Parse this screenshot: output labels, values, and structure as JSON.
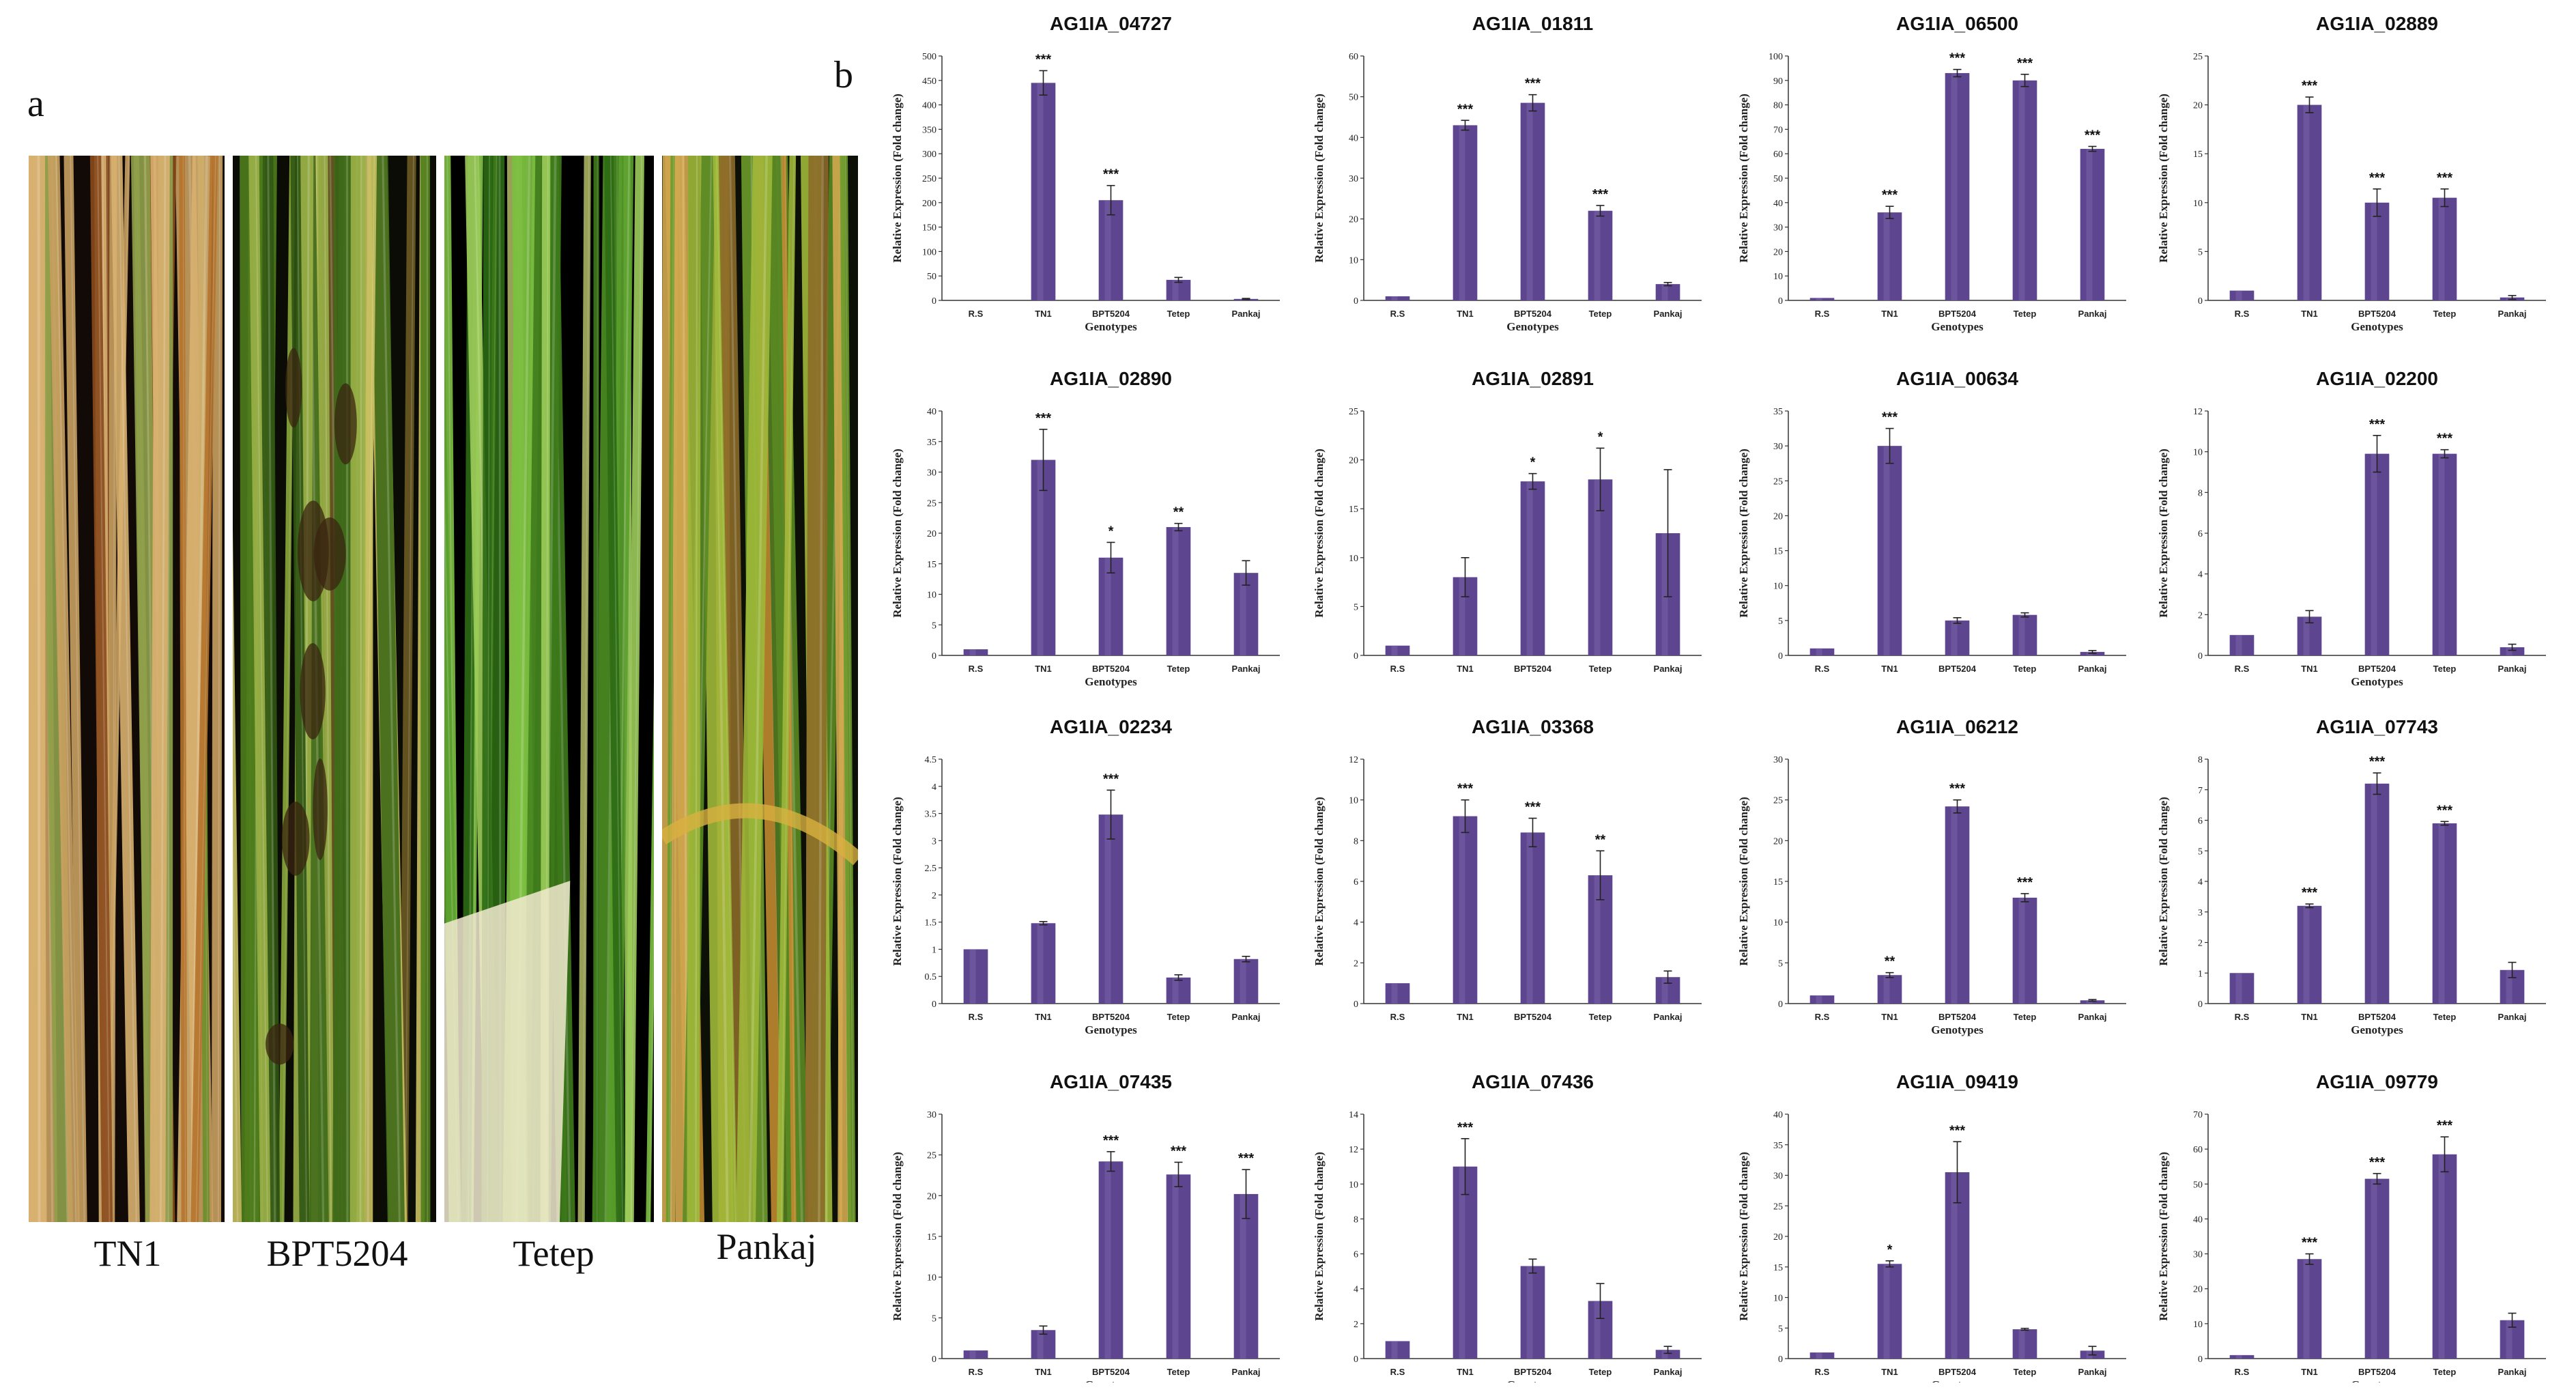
{
  "figure": {
    "panel_a_letter": "a",
    "panel_b_letter": "b"
  },
  "photos": [
    {
      "label": "TN1"
    },
    {
      "label": "BPT5204"
    },
    {
      "label": "Tetep"
    },
    {
      "label": "Pankaj"
    }
  ],
  "colors": {
    "bar": "#5e4590",
    "bar_highlight": "#7f68ae",
    "error": "#222222"
  },
  "chart_data": [
    {
      "type": "bar",
      "title": "AG1IA_04727",
      "categories": [
        "R.S",
        "TN1",
        "BPT5204",
        "Tetep",
        "Pankaj"
      ],
      "values": [
        0,
        445,
        205,
        42,
        3
      ],
      "errors": [
        0,
        25,
        30,
        5,
        1
      ],
      "significance": [
        "",
        "***",
        "***",
        "",
        ""
      ],
      "ylabel": "Relative Expression (Fold change)",
      "xlabel": "Genotypes",
      "ylim": [
        0,
        500
      ],
      "yticks": [
        0,
        50,
        100,
        150,
        200,
        250,
        300,
        350,
        400,
        450,
        500
      ]
    },
    {
      "type": "bar",
      "title": "AG1IA_01811",
      "categories": [
        "R.S",
        "TN1",
        "BPT5204",
        "Tetep",
        "Pankaj"
      ],
      "values": [
        1,
        43,
        48.5,
        22,
        4
      ],
      "errors": [
        0,
        1.2,
        2,
        1.3,
        0.4
      ],
      "significance": [
        "",
        "***",
        "***",
        "***",
        ""
      ],
      "ylabel": "Relative Expression (Fold change)",
      "xlabel": "Genotypes",
      "ylim": [
        0,
        60
      ],
      "yticks": [
        0,
        10,
        20,
        30,
        40,
        50,
        60
      ]
    },
    {
      "type": "bar",
      "title": "AG1IA_06500",
      "categories": [
        "R.S",
        "TN1",
        "BPT5204",
        "Tetep",
        "Pankaj"
      ],
      "values": [
        1,
        36,
        93,
        90,
        62
      ],
      "errors": [
        0,
        2.5,
        1.5,
        2.5,
        1
      ],
      "significance": [
        "",
        "***",
        "***",
        "***",
        "***"
      ],
      "ylabel": "Relative Expression (Fold change)",
      "xlabel": "Genotypes",
      "ylim": [
        0,
        100
      ],
      "yticks": [
        0,
        10,
        20,
        30,
        40,
        50,
        60,
        70,
        80,
        90,
        100
      ]
    },
    {
      "type": "bar",
      "title": "AG1IA_02889",
      "categories": [
        "R.S",
        "TN1",
        "BPT5204",
        "Tetep",
        "Pankaj"
      ],
      "values": [
        1,
        20,
        10,
        10.5,
        0.3
      ],
      "errors": [
        0,
        0.8,
        1.4,
        0.9,
        0.2
      ],
      "significance": [
        "",
        "***",
        "***",
        "***",
        ""
      ],
      "ylabel": "Relative Expression (Fold change)",
      "xlabel": "Genotypes",
      "ylim": [
        0,
        25
      ],
      "yticks": [
        0,
        5,
        10,
        15,
        20,
        25
      ]
    },
    {
      "type": "bar",
      "title": "AG1IA_02890",
      "categories": [
        "R.S",
        "TN1",
        "BPT5204",
        "Tetep",
        "Pankaj"
      ],
      "values": [
        1,
        32,
        16,
        21,
        13.5
      ],
      "errors": [
        0,
        5,
        2.5,
        0.6,
        2
      ],
      "significance": [
        "",
        "***",
        "*",
        "**",
        ""
      ],
      "ylabel": "Relative Expression (Fold change)",
      "xlabel": "Genotypes",
      "ylim": [
        0,
        40
      ],
      "yticks": [
        0,
        5,
        10,
        15,
        20,
        25,
        30,
        35,
        40
      ]
    },
    {
      "type": "bar",
      "title": "AG1IA_02891",
      "categories": [
        "R.S",
        "TN1",
        "BPT5204",
        "Tetep",
        "Pankaj"
      ],
      "values": [
        1,
        8,
        17.8,
        18,
        12.5
      ],
      "errors": [
        0,
        2,
        0.8,
        3.2,
        6.5
      ],
      "significance": [
        "",
        "",
        "*",
        "*",
        ""
      ],
      "ylabel": "Relative Expression (Fold change)",
      "xlabel": "",
      "ylim": [
        0,
        25
      ],
      "yticks": [
        0,
        5,
        10,
        15,
        20,
        25
      ]
    },
    {
      "type": "bar",
      "title": "AG1IA_00634",
      "categories": [
        "R.S",
        "TN1",
        "BPT5204",
        "Tetep",
        "Pankaj"
      ],
      "values": [
        1,
        30,
        5,
        5.8,
        0.5
      ],
      "errors": [
        0,
        2.5,
        0.4,
        0.3,
        0.2
      ],
      "significance": [
        "",
        "***",
        "",
        "",
        ""
      ],
      "ylabel": "Relative Expression (Fold change)",
      "xlabel": "",
      "ylim": [
        0,
        35
      ],
      "yticks": [
        0,
        5,
        10,
        15,
        20,
        25,
        30,
        35
      ]
    },
    {
      "type": "bar",
      "title": "AG1IA_02200",
      "categories": [
        "R.S",
        "TN1",
        "BPT5204",
        "Tetep",
        "Pankaj"
      ],
      "values": [
        1,
        1.9,
        9.9,
        9.9,
        0.4
      ],
      "errors": [
        0,
        0.3,
        0.9,
        0.2,
        0.15
      ],
      "significance": [
        "",
        "",
        "***",
        "***",
        ""
      ],
      "ylabel": "Relative Expression (Fold change)",
      "xlabel": "Genotypes",
      "ylim": [
        0,
        12
      ],
      "yticks": [
        0,
        2,
        4,
        6,
        8,
        10,
        12
      ]
    },
    {
      "type": "bar",
      "title": "AG1IA_02234",
      "categories": [
        "R.S",
        "TN1",
        "BPT5204",
        "Tetep",
        "Pankaj"
      ],
      "values": [
        1,
        1.48,
        3.48,
        0.48,
        0.82
      ],
      "errors": [
        0,
        0.03,
        0.45,
        0.05,
        0.05
      ],
      "significance": [
        "",
        "",
        "***",
        "",
        ""
      ],
      "ylabel": "Relative Expression (Fold change)",
      "xlabel": "Genotypes",
      "ylim": [
        0,
        4.5
      ],
      "yticks": [
        0,
        0.5,
        1,
        1.5,
        2,
        2.5,
        3,
        3.5,
        4,
        4.5
      ]
    },
    {
      "type": "bar",
      "title": "AG1IA_03368",
      "categories": [
        "R.S",
        "TN1",
        "BPT5204",
        "Tetep",
        "Pankaj"
      ],
      "values": [
        1,
        9.2,
        8.4,
        6.3,
        1.3
      ],
      "errors": [
        0,
        0.8,
        0.7,
        1.2,
        0.3
      ],
      "significance": [
        "",
        "***",
        "***",
        "**",
        ""
      ],
      "ylabel": "Relative Expression (Fold change)",
      "xlabel": "",
      "ylim": [
        0,
        12
      ],
      "yticks": [
        0,
        2,
        4,
        6,
        8,
        10,
        12
      ]
    },
    {
      "type": "bar",
      "title": "AG1IA_06212",
      "categories": [
        "R.S",
        "TN1",
        "BPT5204",
        "Tetep",
        "Pankaj"
      ],
      "values": [
        1,
        3.5,
        24.2,
        13,
        0.4
      ],
      "errors": [
        0,
        0.3,
        0.8,
        0.5,
        0.1
      ],
      "significance": [
        "",
        "**",
        "***",
        "***",
        ""
      ],
      "ylabel": "Relative Expression (Fold change)",
      "xlabel": "Genotypes",
      "ylim": [
        0,
        30
      ],
      "yticks": [
        0,
        5,
        10,
        15,
        20,
        25,
        30
      ]
    },
    {
      "type": "bar",
      "title": "AG1IA_07743",
      "categories": [
        "R.S",
        "TN1",
        "BPT5204",
        "Tetep",
        "Pankaj"
      ],
      "values": [
        1,
        3.2,
        7.2,
        5.9,
        1.1
      ],
      "errors": [
        0,
        0.06,
        0.35,
        0.06,
        0.25
      ],
      "significance": [
        "",
        "***",
        "***",
        "***",
        ""
      ],
      "ylabel": "Relative Expression (Fold change)",
      "xlabel": "Genotypes",
      "ylim": [
        0,
        8
      ],
      "yticks": [
        0,
        1,
        2,
        3,
        4,
        5,
        6,
        7,
        8
      ]
    },
    {
      "type": "bar",
      "title": "AG1IA_07435",
      "categories": [
        "R.S",
        "TN1",
        "BPT5204",
        "Tetep",
        "Pankaj"
      ],
      "values": [
        1,
        3.5,
        24.2,
        22.6,
        20.2
      ],
      "errors": [
        0,
        0.5,
        1.2,
        1.5,
        3
      ],
      "significance": [
        "",
        "",
        "***",
        "***",
        "***"
      ],
      "ylabel": "Relative Expression (Fold change)",
      "xlabel": "Genotypes",
      "ylim": [
        0,
        30
      ],
      "yticks": [
        0,
        5,
        10,
        15,
        20,
        25,
        30
      ]
    },
    {
      "type": "bar",
      "title": "AG1IA_07436",
      "categories": [
        "R.S",
        "TN1",
        "BPT5204",
        "Tetep",
        "Pankaj"
      ],
      "values": [
        1,
        11,
        5.3,
        3.3,
        0.5
      ],
      "errors": [
        0,
        1.6,
        0.4,
        1,
        0.2
      ],
      "significance": [
        "",
        "***",
        "",
        "",
        ""
      ],
      "ylabel": "Relative Expression (Fold change)",
      "xlabel": "Genotypes",
      "ylim": [
        0,
        14
      ],
      "yticks": [
        0,
        2,
        4,
        6,
        8,
        10,
        12,
        14
      ]
    },
    {
      "type": "bar",
      "title": "AG1IA_09419",
      "categories": [
        "R.S",
        "TN1",
        "BPT5204",
        "Tetep",
        "Pankaj"
      ],
      "values": [
        1,
        15.5,
        30.5,
        4.8,
        1.3
      ],
      "errors": [
        0,
        0.5,
        5,
        0.15,
        0.7
      ],
      "significance": [
        "",
        "*",
        "***",
        "",
        ""
      ],
      "ylabel": "Relative Expression (Fold change)",
      "xlabel": "Genotypes",
      "ylim": [
        0,
        40
      ],
      "yticks": [
        0,
        5,
        10,
        15,
        20,
        25,
        30,
        35,
        40
      ]
    },
    {
      "type": "bar",
      "title": "AG1IA_09779",
      "categories": [
        "R.S",
        "TN1",
        "BPT5204",
        "Tetep",
        "Pankaj"
      ],
      "values": [
        1,
        28.5,
        51.5,
        58.5,
        11
      ],
      "errors": [
        0,
        1.5,
        1.5,
        5,
        2
      ],
      "significance": [
        "",
        "***",
        "***",
        "***",
        ""
      ],
      "ylabel": "Relative Expression (Fold change)",
      "xlabel": "Genotypes",
      "ylim": [
        0,
        70
      ],
      "yticks": [
        0,
        10,
        20,
        30,
        40,
        50,
        60,
        70
      ]
    }
  ]
}
